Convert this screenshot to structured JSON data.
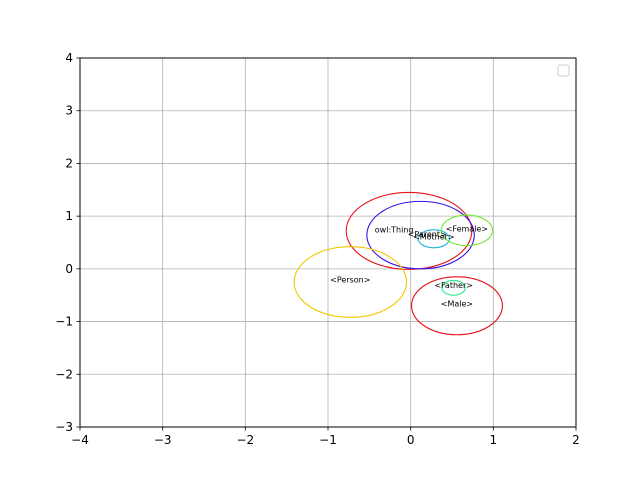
{
  "chart_data": {
    "type": "scatter",
    "title": "",
    "xlabel": "",
    "ylabel": "",
    "xlim": [
      -4,
      2
    ],
    "ylim": [
      -3,
      4
    ],
    "xticks": [
      -4,
      -3,
      -2,
      -1,
      0,
      1,
      2
    ],
    "yticks": [
      -3,
      -2,
      -1,
      0,
      1,
      2,
      3,
      4
    ],
    "xtick_labels": [
      "−4",
      "−3",
      "−2",
      "−1",
      "0",
      "1",
      "2"
    ],
    "ytick_labels": [
      "−3",
      "−2",
      "−1",
      "0",
      "1",
      "2",
      "3",
      "4"
    ],
    "grid": true,
    "legend": {
      "placement": "top-right",
      "entries": []
    },
    "ellipses": [
      {
        "label": "owl:Thing",
        "cx": -0.02,
        "cy": 0.72,
        "rx": 0.76,
        "ry": 0.73,
        "color": "#e8101a",
        "label_x": -0.2,
        "label_y": 0.75
      },
      {
        "label": "<Parent>",
        "cx": 0.12,
        "cy": 0.64,
        "rx": 0.65,
        "ry": 0.64,
        "color": "#3a10e8",
        "label_x": 0.2,
        "label_y": 0.66
      },
      {
        "label": "<Mother>",
        "cx": 0.28,
        "cy": 0.57,
        "rx": 0.19,
        "ry": 0.17,
        "color": "#1ab0e8",
        "label_x": 0.28,
        "label_y": 0.61
      },
      {
        "label": "<Female>",
        "cx": 0.68,
        "cy": 0.73,
        "rx": 0.31,
        "ry": 0.29,
        "color": "#6de82a",
        "label_x": 0.68,
        "label_y": 0.77
      },
      {
        "label": "<Person>",
        "cx": -0.73,
        "cy": -0.25,
        "rx": 0.68,
        "ry": 0.67,
        "color": "#f2c800",
        "label_x": -0.73,
        "label_y": -0.2
      },
      {
        "label": "<Father>",
        "cx": 0.52,
        "cy": -0.36,
        "rx": 0.14,
        "ry": 0.14,
        "color": "#2ae890",
        "label_x": 0.52,
        "label_y": -0.31
      },
      {
        "label": "<Male>",
        "cx": 0.56,
        "cy": -0.7,
        "rx": 0.55,
        "ry": 0.55,
        "color": "#e8101a",
        "label_x": 0.56,
        "label_y": -0.66
      }
    ]
  }
}
